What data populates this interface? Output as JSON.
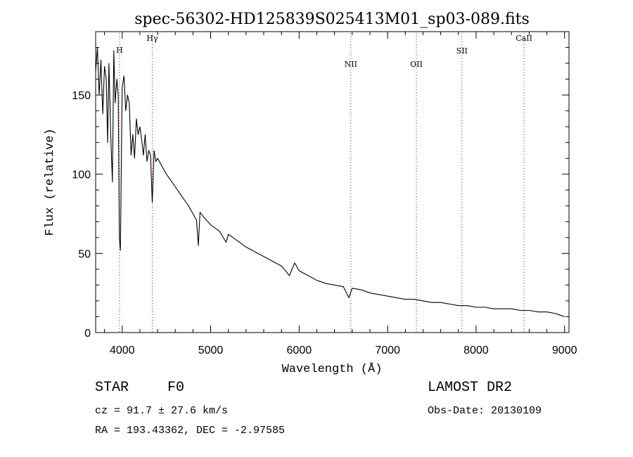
{
  "chart_data": {
    "type": "line",
    "title": "spec-56302-HD125839S025413M01_sp03-089.fits",
    "xlabel": "Wavelength (Å)",
    "ylabel": "Flux (relative)",
    "xlim": [
      3700,
      9050
    ],
    "ylim": [
      0,
      190
    ],
    "x_ticks": [
      4000,
      5000,
      6000,
      7000,
      8000,
      9000
    ],
    "y_ticks": [
      0,
      50,
      100,
      150
    ],
    "x_tick_labels": [
      "4000",
      "5000",
      "6000",
      "7000",
      "8000",
      "9000"
    ],
    "y_tick_labels": [
      "0",
      "50",
      "100",
      "150"
    ],
    "grid": false,
    "line_color": "#000000",
    "marker_color": "#cc0000",
    "spectral_lines": [
      {
        "label": "H",
        "wavelength": 3970
      },
      {
        "label": "Hγ",
        "wavelength": 4340
      },
      {
        "label": "NII",
        "wavelength": 6584
      },
      {
        "label": "OII",
        "wavelength": 7325
      },
      {
        "label": "SII",
        "wavelength": 7840
      },
      {
        "label": "CaII",
        "wavelength": 8542
      }
    ],
    "series": [
      {
        "x": [
          3700,
          3720,
          3740,
          3760,
          3780,
          3800,
          3820,
          3835,
          3850,
          3870,
          3889,
          3905,
          3920,
          3940,
          3955,
          3968,
          3980,
          4000,
          4020,
          4040,
          4060,
          4080,
          4101,
          4120,
          4140,
          4160,
          4180,
          4200,
          4220,
          4240,
          4260,
          4280,
          4300,
          4320,
          4340,
          4360,
          4380,
          4400,
          4450,
          4500,
          4550,
          4600,
          4650,
          4700,
          4750,
          4800,
          4840,
          4861,
          4880,
          4920,
          5000,
          5100,
          5175,
          5200,
          5300,
          5400,
          5500,
          5600,
          5700,
          5800,
          5890,
          5950,
          6000,
          6100,
          6200,
          6300,
          6400,
          6500,
          6563,
          6600,
          6700,
          6800,
          6900,
          7000,
          7100,
          7200,
          7300,
          7400,
          7500,
          7600,
          7700,
          7800,
          7900,
          8000,
          8100,
          8200,
          8300,
          8400,
          8500,
          8600,
          8700,
          8800,
          8900,
          8950,
          9000
        ],
        "y": [
          165,
          180,
          150,
          172,
          138,
          168,
          160,
          120,
          170,
          125,
          95,
          178,
          145,
          160,
          150,
          60,
          52,
          155,
          162,
          140,
          150,
          145,
          112,
          125,
          110,
          135,
          125,
          130,
          122,
          112,
          125,
          108,
          115,
          112,
          82,
          115,
          108,
          110,
          105,
          100,
          96,
          92,
          88,
          84,
          80,
          75,
          71,
          55,
          76,
          73,
          68,
          64,
          57,
          62,
          58,
          54,
          51,
          48,
          45,
          42,
          36,
          44,
          39,
          36,
          33,
          31,
          30,
          29,
          22,
          28,
          27,
          25,
          24,
          23,
          22,
          21,
          21,
          20,
          19,
          19,
          18,
          17,
          17,
          16,
          16,
          15,
          15,
          15,
          14,
          14,
          13,
          13,
          12,
          11,
          10
        ]
      }
    ]
  },
  "info": {
    "class_label": "STAR",
    "subclass": "F0",
    "survey": "LAMOST DR2",
    "cz_line": "cz = 91.7 ± 27.6 km/s",
    "obs_date": "Obs-Date: 20130109",
    "radec_line": "RA = 193.43362, DEC =  -2.97585"
  }
}
